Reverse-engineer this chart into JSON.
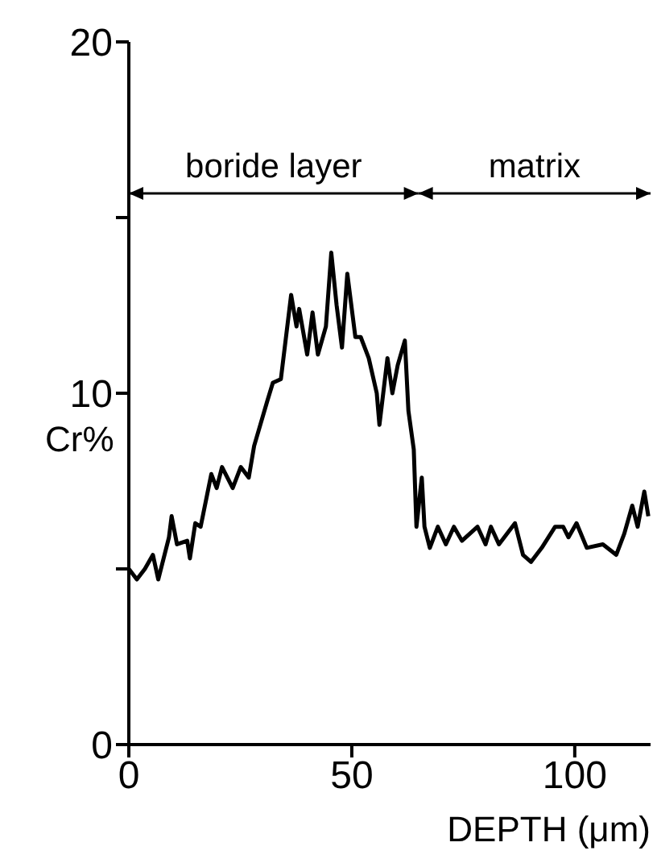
{
  "chart_data": {
    "type": "line",
    "xlabel": "DEPTH (μm)",
    "ylabel": "Cr%",
    "xlim": [
      0,
      117
    ],
    "xticks": [
      0,
      50,
      100
    ],
    "ylim": [
      0,
      20
    ],
    "yticks": [
      0,
      {
        "value": 5,
        "label": null
      },
      10,
      {
        "value": 15,
        "label": null
      },
      20
    ],
    "marker": "none",
    "line_style": "solid",
    "annotations": [
      "boride layer",
      "matrix"
    ],
    "series": [
      {
        "color": "#000000",
        "x": [
          0,
          1.8,
          3.6,
          5.4,
          6.6,
          9.0,
          9.6,
          10.8,
          13.1,
          13.7,
          14.9,
          16.1,
          18.5,
          19.7,
          20.9,
          23.3,
          25.1,
          26.9,
          28.1,
          31.1,
          32.3,
          34.1,
          36.4,
          37.6,
          38.2,
          40.0,
          41.2,
          42.4,
          44.2,
          45.4,
          46.6,
          47.8,
          49.0,
          50.8,
          52.0,
          53.8,
          55.6,
          56.2,
          58.0,
          59.1,
          60.3,
          61.9,
          62.7,
          63.9,
          64.5,
          65.7,
          66.3,
          67.5,
          69.3,
          71.1,
          72.9,
          74.7,
          78.2,
          80.0,
          81.2,
          83.0,
          86.6,
          88.4,
          90.2,
          92.6,
          95.6,
          97.4,
          98.6,
          100.4,
          102.7,
          106.3,
          109.3,
          111.1,
          112.9,
          114.1,
          115.6,
          116.5
        ],
        "values": [
          5.0,
          4.7,
          5.0,
          5.4,
          4.7,
          5.9,
          6.5,
          5.7,
          5.8,
          5.3,
          6.3,
          6.2,
          7.7,
          7.3,
          7.9,
          7.3,
          7.9,
          7.6,
          8.5,
          9.8,
          10.3,
          10.4,
          12.8,
          11.9,
          12.4,
          11.1,
          12.3,
          11.1,
          11.9,
          14.0,
          12.5,
          11.3,
          13.4,
          11.6,
          11.6,
          11.0,
          10.0,
          9.1,
          11.0,
          10.0,
          10.8,
          11.5,
          9.5,
          8.4,
          6.2,
          7.6,
          6.2,
          5.6,
          6.2,
          5.7,
          6.2,
          5.8,
          6.2,
          5.7,
          6.2,
          5.7,
          6.3,
          5.4,
          5.2,
          5.6,
          6.2,
          6.2,
          5.9,
          6.3,
          5.6,
          5.7,
          5.4,
          6.0,
          6.8,
          6.2,
          7.2,
          6.5
        ]
      }
    ]
  }
}
